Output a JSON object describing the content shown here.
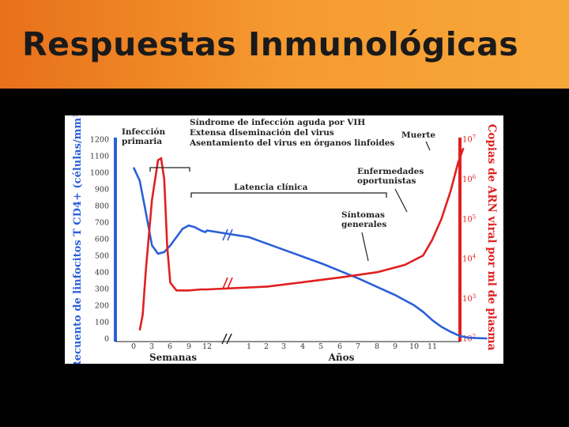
{
  "slide": {
    "title": "Respuestas Inmunológicas"
  },
  "chart_data": {
    "type": "line",
    "left_axis": {
      "label": "Recuento de linfocitos T CD4+ (células/mm³)",
      "ticks": [
        "1200",
        "1100",
        "1000",
        "900",
        "800",
        "700",
        "600",
        "500",
        "400",
        "300",
        "200",
        "100",
        "0"
      ],
      "ylim": [
        0,
        1200
      ],
      "color": "#2b5fd8"
    },
    "right_axis": {
      "label": "Copias de ARN viral por ml de plasma",
      "ticks": [
        {
          "base": "10",
          "exp": "7"
        },
        {
          "base": "10",
          "exp": "6"
        },
        {
          "base": "10",
          "exp": "5"
        },
        {
          "base": "10",
          "exp": "4"
        },
        {
          "base": "10",
          "exp": "3"
        },
        {
          "base": "10",
          "exp": "2"
        }
      ],
      "scale": "log",
      "ylim": [
        100,
        10000000
      ],
      "color": "#e02020"
    },
    "x_weeks": {
      "label": "Semanas",
      "ticks": [
        "0",
        "3",
        "6",
        "9",
        "12"
      ]
    },
    "x_years": {
      "label": "Años",
      "ticks": [
        "1",
        "2",
        "3",
        "4",
        "5",
        "6",
        "7",
        "8",
        "9",
        "10",
        "11"
      ]
    },
    "series": [
      {
        "color": "#2b5fd8",
        "points": [
          [
            0,
            1030
          ],
          [
            1,
            950
          ],
          [
            2,
            760
          ],
          [
            3,
            560
          ],
          [
            4,
            510
          ],
          [
            5,
            520
          ],
          [
            6,
            560
          ],
          [
            7,
            610
          ],
          [
            8,
            660
          ],
          [
            9,
            680
          ],
          [
            10,
            670
          ],
          [
            11,
            650
          ],
          [
            11.7,
            640
          ],
          [
            12,
            650
          ],
          [
            13,
            610
          ],
          [
            14,
            570
          ],
          [
            15,
            530
          ],
          [
            16,
            490
          ],
          [
            17,
            450
          ],
          [
            18,
            405
          ],
          [
            19,
            360
          ],
          [
            20,
            310
          ],
          [
            21,
            260
          ],
          [
            22,
            200
          ],
          [
            22.5,
            160
          ],
          [
            23,
            110
          ],
          [
            23.5,
            70
          ],
          [
            24,
            40
          ],
          [
            24.5,
            15
          ],
          [
            25,
            4
          ],
          [
            26,
            0
          ]
        ]
      },
      {
        "color": "#e02020",
        "points": [
          [
            1,
            160
          ],
          [
            1.5,
            400
          ],
          [
            2,
            5000
          ],
          [
            3,
            300000
          ],
          [
            4,
            3000000
          ],
          [
            4.5,
            3300000
          ],
          [
            5,
            1000000
          ],
          [
            5.5,
            20000
          ],
          [
            6,
            2500
          ],
          [
            7,
            1600
          ],
          [
            9,
            1600
          ],
          [
            11,
            1700
          ],
          [
            11.7,
            1700
          ],
          [
            12,
            1700
          ],
          [
            14,
            2000
          ],
          [
            16,
            2600
          ],
          [
            18,
            3400
          ],
          [
            20,
            4600
          ],
          [
            21.5,
            7000
          ],
          [
            22.5,
            12000
          ],
          [
            23,
            30000
          ],
          [
            23.5,
            100000
          ],
          [
            24,
            500000
          ],
          [
            24.4,
            2500000
          ],
          [
            24.7,
            6000000
          ]
        ]
      }
    ],
    "annotations": [
      {
        "text": "Infección",
        "key": "infeccion"
      },
      {
        "text": "primaria",
        "key": "primaria"
      },
      {
        "text": "Síndrome de infección aguda por VIH",
        "key": "sindrome"
      },
      {
        "text": "Extensa diseminación del virus",
        "key": "diseminacion"
      },
      {
        "text": "Asentamiento del virus en órganos linfoides",
        "key": "asentamiento"
      },
      {
        "text": "Latencia clínica",
        "key": "latencia"
      },
      {
        "text": "Muerte",
        "key": "muerte"
      },
      {
        "text": "Enfermedades",
        "key": "enfermedades"
      },
      {
        "text": "oportunistas",
        "key": "oportunistas"
      },
      {
        "text": "Síntomas",
        "key": "sintomas"
      },
      {
        "text": "generales",
        "key": "generales"
      }
    ]
  }
}
